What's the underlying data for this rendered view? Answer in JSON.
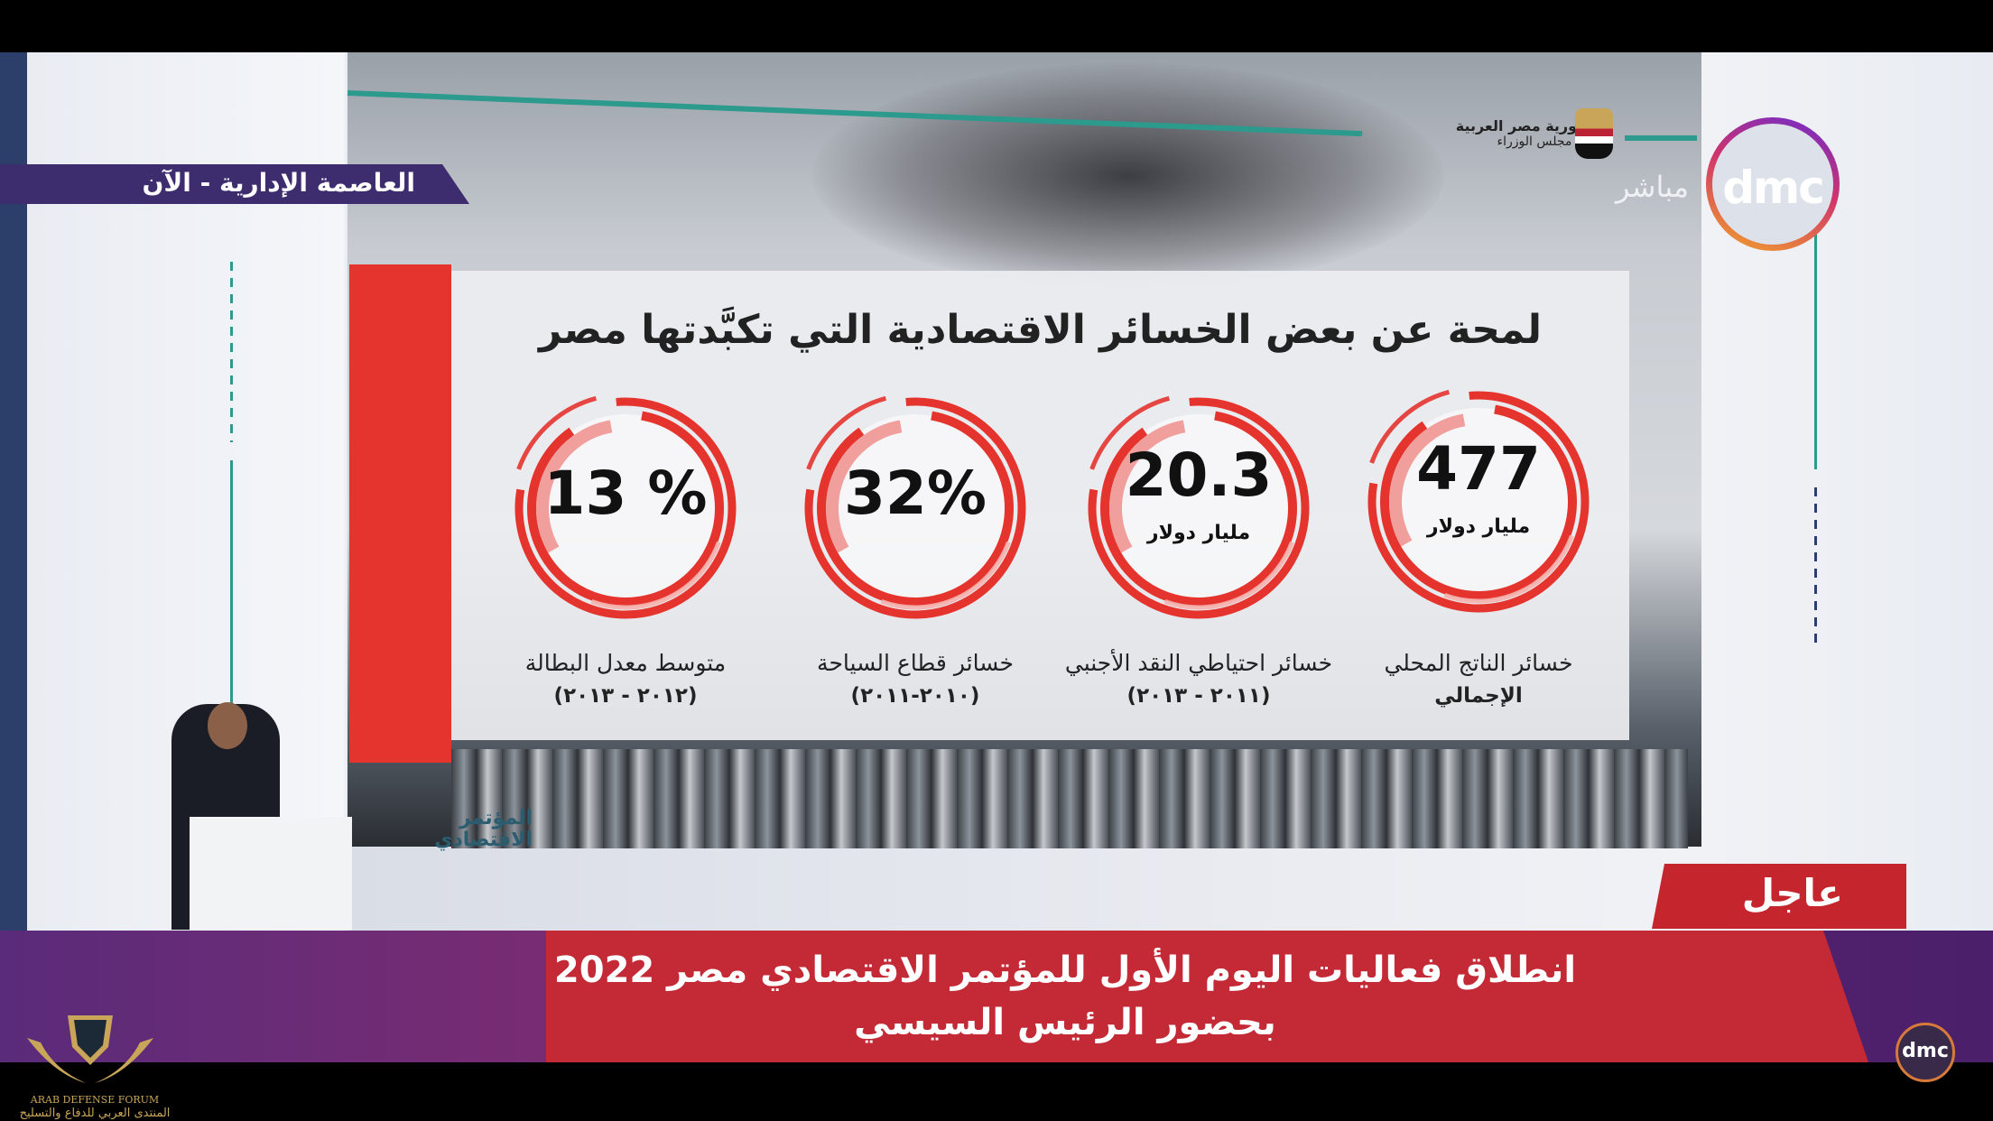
{
  "location_tag": "العاصمة الإدارية - الآن",
  "government": {
    "line1": "جمهورية مصر العربية",
    "line2": "رئاسة مجلس الوزراء"
  },
  "channel": {
    "name": "dmc",
    "live_label": "مباشر",
    "brand_colors": [
      "#6a2bd0",
      "#d0336c",
      "#f1a32a"
    ]
  },
  "infographic": {
    "title": "لمحة عن بعض الخسائر الاقتصادية التي تكبَّدتها مصر",
    "accent_color": "#e4342d",
    "items": [
      {
        "value": "13 %",
        "unit": "",
        "label": "متوسط معدل البطالة",
        "period": "(٢٠١٢ - ٢٠١٣)"
      },
      {
        "value": "32%",
        "unit": "",
        "label": "خسائر قطاع السياحة",
        "period": "(٢٠١٠-٢٠١١)"
      },
      {
        "value": "20.3",
        "unit": "مليار دولار",
        "label": "خسائر احتياطي النقد الأجنبي",
        "period": "(٢٠١١ - ٢٠١٣)"
      },
      {
        "value": "477",
        "unit": "مليار دولار",
        "label": "خسائر الناتج المحلي",
        "period": "الإجمالي"
      }
    ]
  },
  "conference_logo": "المؤتمر الاقتصادي",
  "ticker": {
    "urgent_label": "عاجل",
    "line1": "انطلاق فعاليات اليوم الأول للمؤتمر الاقتصادي مصر 2022",
    "line2": "بحضور الرئيس السيسي"
  },
  "watermark": {
    "en": "ARAB DEFENSE FORUM",
    "ar": "المنتدى العربي للدفاع والتسليح"
  }
}
